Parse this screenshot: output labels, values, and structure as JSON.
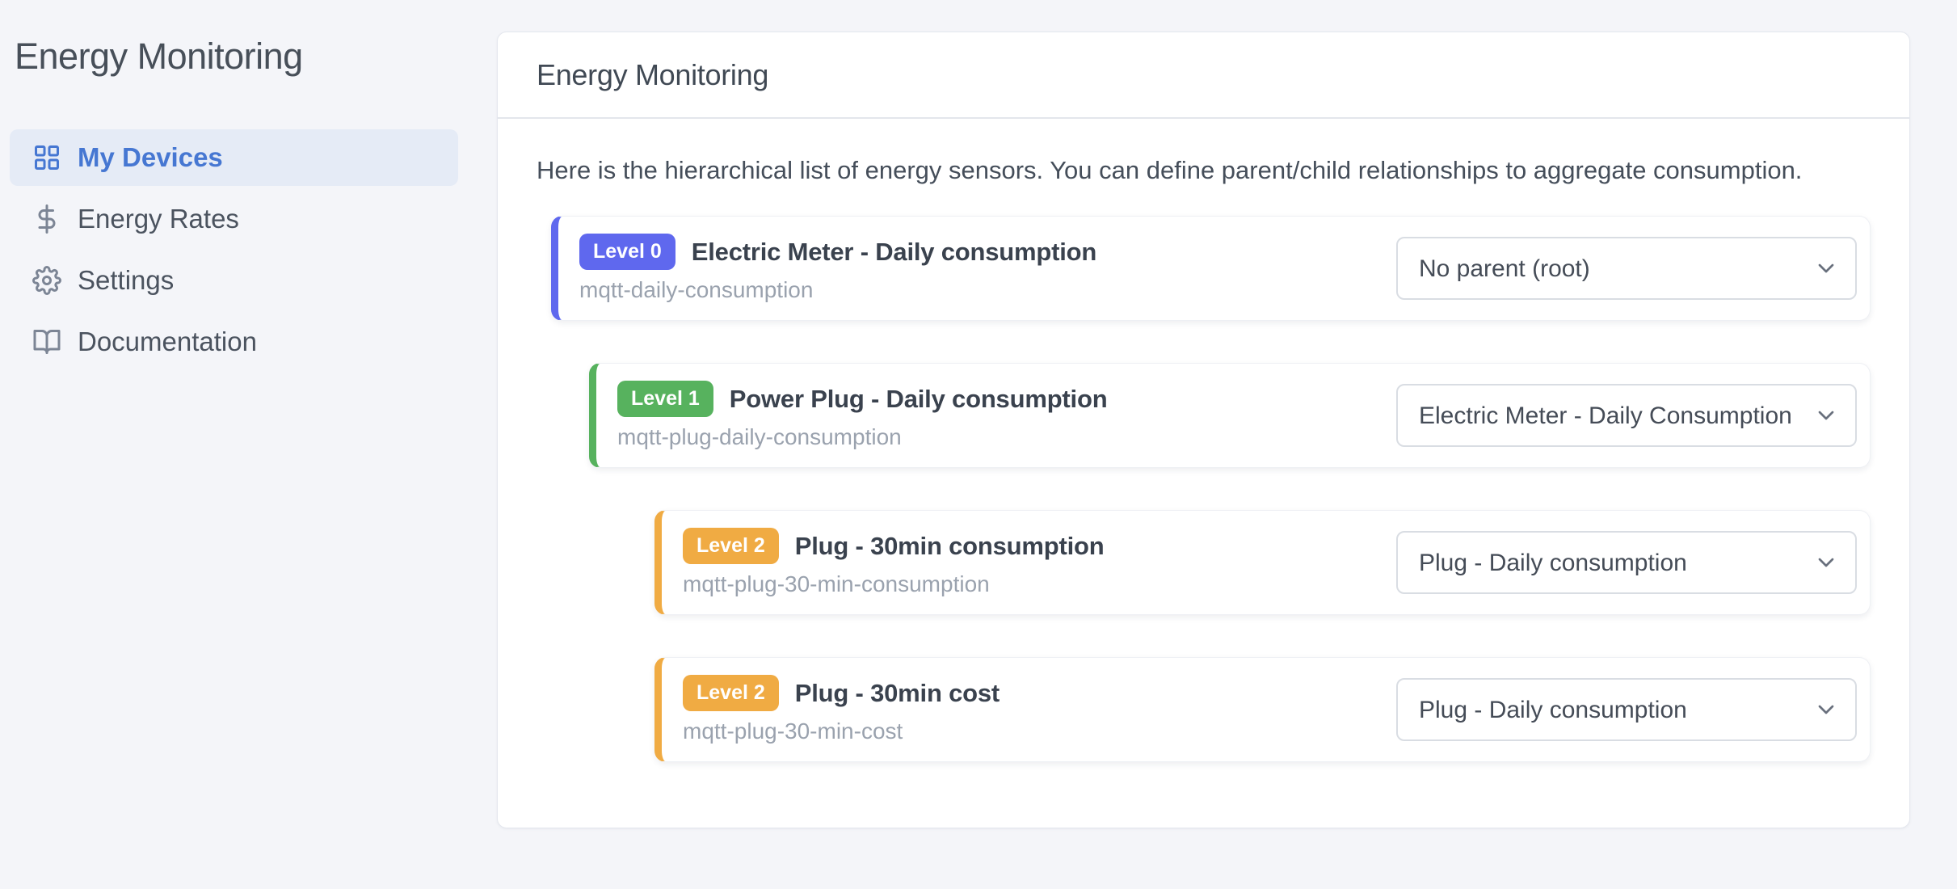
{
  "sidebar": {
    "title": "Energy Monitoring",
    "items": [
      {
        "label": "My Devices",
        "icon": "grid-icon",
        "active": true
      },
      {
        "label": "Energy Rates",
        "icon": "dollar-icon",
        "active": false
      },
      {
        "label": "Settings",
        "icon": "gear-icon",
        "active": false
      },
      {
        "label": "Documentation",
        "icon": "book-open-icon",
        "active": false
      }
    ]
  },
  "main": {
    "title": "Energy Monitoring",
    "description": "Here is the hierarchical list of energy sensors. You can define parent/child relationships to aggregate consumption.",
    "sensors": [
      {
        "level": 0,
        "level_label": "Level 0",
        "name": "Electric Meter - Daily consumption",
        "sensor_id": "mqtt-daily-consumption",
        "parent_selected": "No parent (root)",
        "accent": "#5f68ee"
      },
      {
        "level": 1,
        "level_label": "Level 1",
        "name": "Power Plug - Daily consumption",
        "sensor_id": "mqtt-plug-daily-consumption",
        "parent_selected": "Electric Meter - Daily Consumption",
        "accent": "#57b25e"
      },
      {
        "level": 2,
        "level_label": "Level 2",
        "name": "Plug - 30min consumption",
        "sensor_id": "mqtt-plug-30-min-consumption",
        "parent_selected": "Plug - Daily consumption",
        "accent": "#f0ab43"
      },
      {
        "level": 2,
        "level_label": "Level 2",
        "name": "Plug - 30min cost",
        "sensor_id": "mqtt-plug-30-min-cost",
        "parent_selected": "Plug - Daily consumption",
        "accent": "#f0ab43"
      }
    ]
  },
  "colors": {
    "background": "#f4f5f9",
    "nav_active_text": "#4677d2",
    "nav_active_bg": "#e5ebf6",
    "level0_accent": "#5f68ee",
    "level1_accent": "#57b25e",
    "level2_accent": "#f0ab43"
  }
}
